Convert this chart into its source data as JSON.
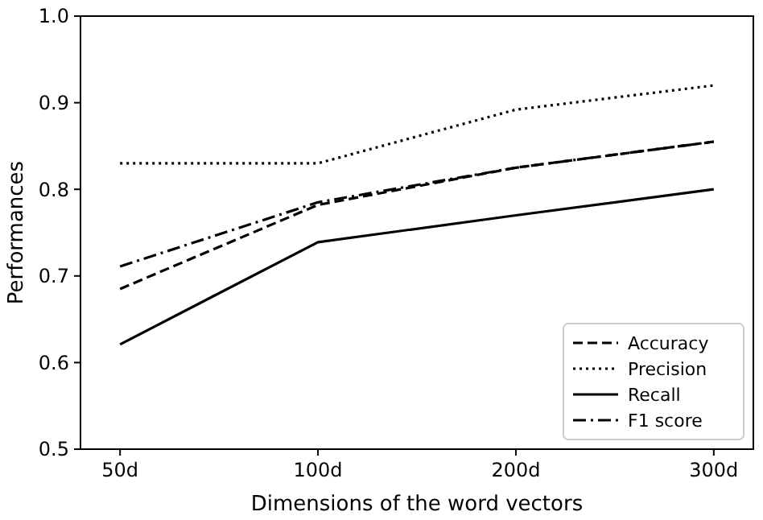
{
  "chart_data": {
    "type": "line",
    "xlabel": "Dimensions of the word vectors",
    "ylabel": "Performances",
    "categories": [
      "50d",
      "100d",
      "200d",
      "300d"
    ],
    "series": [
      {
        "name": "Accuracy",
        "color": "#000000",
        "line_style": "dashed",
        "values": [
          0.685,
          0.782,
          0.825,
          0.855
        ]
      },
      {
        "name": "Precision",
        "color": "#000000",
        "line_style": "dotted",
        "values": [
          0.83,
          0.83,
          0.892,
          0.92
        ]
      },
      {
        "name": "Recall",
        "color": "#000000",
        "line_style": "solid",
        "values": [
          0.621,
          0.739,
          0.77,
          0.8
        ]
      },
      {
        "name": "F1 score",
        "color": "#000000",
        "line_style": "dashdot",
        "values": [
          0.711,
          0.785,
          0.825,
          0.855
        ]
      }
    ],
    "ylim": [
      0.5,
      1.0
    ],
    "yticks": [
      {
        "value": 0.5,
        "label": "0.5"
      },
      {
        "value": 0.6,
        "label": "0.6"
      },
      {
        "value": 0.7,
        "label": "0.7"
      },
      {
        "value": 0.8,
        "label": "0.8"
      },
      {
        "value": 0.9,
        "label": "0.9"
      },
      {
        "value": 1.0,
        "label": "1.0"
      }
    ],
    "legend": "bottom right",
    "grid": false
  }
}
